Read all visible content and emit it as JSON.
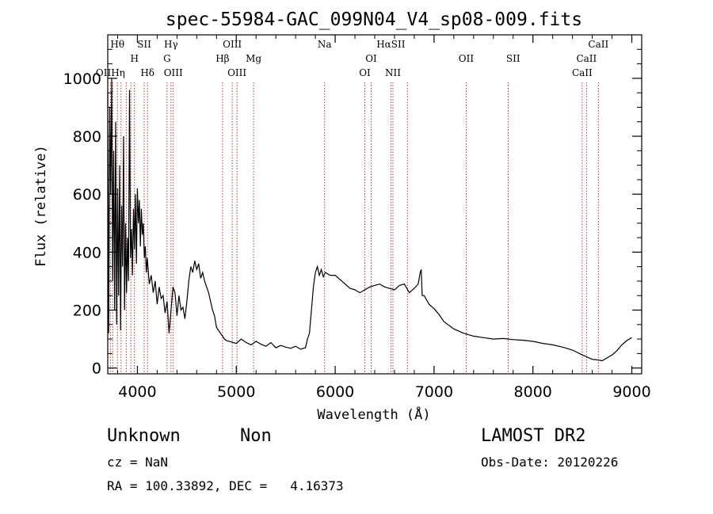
{
  "chart_data": {
    "type": "line",
    "title": "spec-55984-GAC_099N04_V4_sp08-009.fits",
    "xlabel": "Wavelength (Å)",
    "ylabel": "Flux (relative)",
    "xlim": [
      3700,
      9100
    ],
    "ylim": [
      -20,
      1150
    ],
    "xticks": [
      4000,
      5000,
      6000,
      7000,
      8000,
      9000
    ],
    "yticks": [
      0,
      200,
      400,
      600,
      800,
      1000
    ],
    "grid": false,
    "series": [
      {
        "color": "#000000",
        "x": [
          3700,
          3710,
          3720,
          3730,
          3740,
          3750,
          3760,
          3770,
          3780,
          3790,
          3800,
          3810,
          3820,
          3830,
          3840,
          3850,
          3860,
          3870,
          3880,
          3890,
          3900,
          3910,
          3920,
          3930,
          3940,
          3950,
          3960,
          3970,
          3980,
          3990,
          4000,
          4010,
          4020,
          4030,
          4040,
          4050,
          4060,
          4070,
          4080,
          4090,
          4100,
          4120,
          4140,
          4160,
          4180,
          4200,
          4220,
          4240,
          4260,
          4280,
          4300,
          4320,
          4340,
          4360,
          4380,
          4400,
          4420,
          4440,
          4460,
          4480,
          4500,
          4520,
          4540,
          4560,
          4580,
          4600,
          4620,
          4640,
          4660,
          4680,
          4700,
          4720,
          4740,
          4760,
          4780,
          4800,
          4820,
          4840,
          4860,
          4880,
          4900,
          4950,
          5000,
          5050,
          5100,
          5150,
          5200,
          5250,
          5300,
          5350,
          5400,
          5450,
          5500,
          5550,
          5600,
          5650,
          5700,
          5720,
          5740,
          5760,
          5780,
          5800,
          5820,
          5840,
          5860,
          5880,
          5900,
          5950,
          6000,
          6050,
          6100,
          6150,
          6200,
          6250,
          6300,
          6350,
          6400,
          6450,
          6500,
          6550,
          6600,
          6650,
          6700,
          6750,
          6800,
          6840,
          6860,
          6870,
          6880,
          6900,
          6950,
          7000,
          7050,
          7100,
          7200,
          7300,
          7400,
          7500,
          7600,
          7700,
          7800,
          7900,
          8000,
          8100,
          8200,
          8300,
          8400,
          8500,
          8600,
          8650,
          8700,
          8750,
          8800,
          8850,
          8900,
          8950,
          9000
        ],
        "y": [
          950,
          120,
          900,
          600,
          1000,
          300,
          750,
          200,
          850,
          150,
          620,
          250,
          700,
          130,
          560,
          350,
          800,
          200,
          500,
          260,
          450,
          300,
          960,
          380,
          480,
          320,
          550,
          410,
          600,
          360,
          620,
          500,
          580,
          420,
          550,
          460,
          500,
          380,
          420,
          330,
          380,
          290,
          320,
          260,
          300,
          220,
          280,
          240,
          250,
          190,
          230,
          120,
          200,
          280,
          260,
          180,
          250,
          200,
          210,
          170,
          230,
          300,
          350,
          330,
          370,
          340,
          360,
          310,
          330,
          300,
          280,
          260,
          230,
          200,
          180,
          140,
          130,
          120,
          110,
          100,
          95,
          90,
          85,
          100,
          88,
          80,
          92,
          82,
          75,
          88,
          70,
          78,
          72,
          68,
          75,
          65,
          70,
          100,
          120,
          200,
          280,
          330,
          350,
          320,
          340,
          315,
          330,
          320,
          320,
          305,
          290,
          275,
          270,
          260,
          270,
          280,
          285,
          290,
          280,
          275,
          270,
          285,
          290,
          260,
          275,
          290,
          330,
          340,
          250,
          250,
          220,
          205,
          185,
          160,
          135,
          120,
          110,
          105,
          100,
          102,
          98,
          96,
          92,
          85,
          80,
          72,
          62,
          45,
          30,
          28,
          25,
          35,
          45,
          60,
          80,
          95,
          105
        ]
      }
    ],
    "annotations": [
      {
        "label": "Hθ",
        "x": 3798,
        "tier": 0
      },
      {
        "label": "SII",
        "x": 4069,
        "tier": 0
      },
      {
        "label": "Hγ",
        "x": 4340,
        "tier": 0
      },
      {
        "label": "OIII",
        "x": 4959,
        "tier": 0
      },
      {
        "label": "Na",
        "x": 5893,
        "tier": 0
      },
      {
        "label": "HαSII",
        "x": 6563,
        "tier": 0
      },
      {
        "label": "CaII",
        "x": 8662,
        "tier": 0
      },
      {
        "label": "H",
        "x": 3970,
        "tier": 1
      },
      {
        "label": "G",
        "x": 4300,
        "tier": 1
      },
      {
        "label": "Hβ",
        "x": 4861,
        "tier": 1
      },
      {
        "label": "Mg",
        "x": 5175,
        "tier": 1
      },
      {
        "label": "OI",
        "x": 6364,
        "tier": 1
      },
      {
        "label": "OII",
        "x": 7325,
        "tier": 1
      },
      {
        "label": "SII",
        "x": 7800,
        "tier": 1
      },
      {
        "label": "CaII",
        "x": 8542,
        "tier": 1
      },
      {
        "label": "OIIHη",
        "x": 3727,
        "tier": 2
      },
      {
        "label": "Hδ",
        "x": 4102,
        "tier": 2
      },
      {
        "label": "OIII",
        "x": 4363,
        "tier": 2
      },
      {
        "label": "OIII",
        "x": 5007,
        "tier": 2
      },
      {
        "label": "OI",
        "x": 6300,
        "tier": 2
      },
      {
        "label": "NII",
        "x": 6584,
        "tier": 2
      },
      {
        "label": "CaII",
        "x": 8498,
        "tier": 2
      }
    ],
    "marker_lines": [
      3727,
      3750,
      3798,
      3835,
      3889,
      3934,
      3970,
      4069,
      4102,
      4300,
      4340,
      4363,
      4861,
      4959,
      5007,
      5175,
      5893,
      6300,
      6364,
      6563,
      6584,
      6731,
      7325,
      7750,
      8498,
      8542,
      8662
    ],
    "marker_color": "#aa2222"
  },
  "info": {
    "object_class": "Unknown",
    "subclass": "Non",
    "survey": "LAMOST DR2",
    "cz": "cz = NaN",
    "obs_date": "Obs-Date: 20120226",
    "coords": "RA = 100.33892, DEC =   4.16373"
  }
}
